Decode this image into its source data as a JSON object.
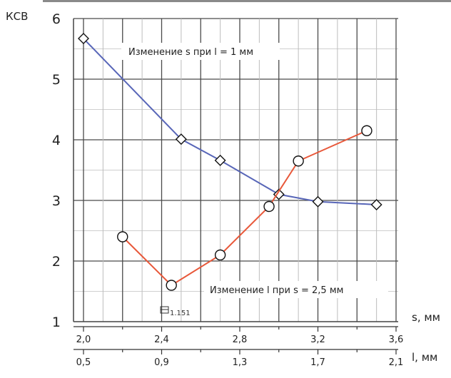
{
  "chart_data": {
    "type": "line",
    "ylabel": "КСВ",
    "ylim": [
      1,
      6
    ],
    "yticks": [
      "1",
      "2",
      "3",
      "4",
      "5",
      "6"
    ],
    "x_axes": [
      {
        "label": "s, мм",
        "range": [
          2.0,
          3.6
        ],
        "ticks": [
          "2,0",
          "2,4",
          "2,8",
          "3,2",
          "3,6"
        ]
      },
      {
        "label": "l, мм",
        "range": [
          0.5,
          2.1
        ],
        "ticks": [
          "0,5",
          "0,9",
          "1,3",
          "1,7",
          "2,1"
        ]
      }
    ],
    "grid": true,
    "series": [
      {
        "name": "Изменение s при l = 1 мм",
        "axis": "s",
        "marker": "diamond",
        "color": "#5866b8",
        "x": [
          2.0,
          2.5,
          2.7,
          3.0,
          3.2,
          3.5
        ],
        "y": [
          5.67,
          4.01,
          3.66,
          3.1,
          2.98,
          2.93
        ]
      },
      {
        "name": "Изменение l при s = 2,5 мм",
        "axis": "l",
        "marker": "circle",
        "color": "#e8583a",
        "x": [
          0.7,
          0.95,
          1.2,
          1.45,
          1.6,
          1.95
        ],
        "y": [
          2.4,
          1.6,
          2.1,
          2.9,
          3.65,
          4.15
        ]
      }
    ],
    "annotations": [
      {
        "text": "Изменение s при l = 1 мм"
      },
      {
        "text": "Изменение l при s = 2,5 мм"
      },
      {
        "text": "1.151"
      }
    ]
  }
}
